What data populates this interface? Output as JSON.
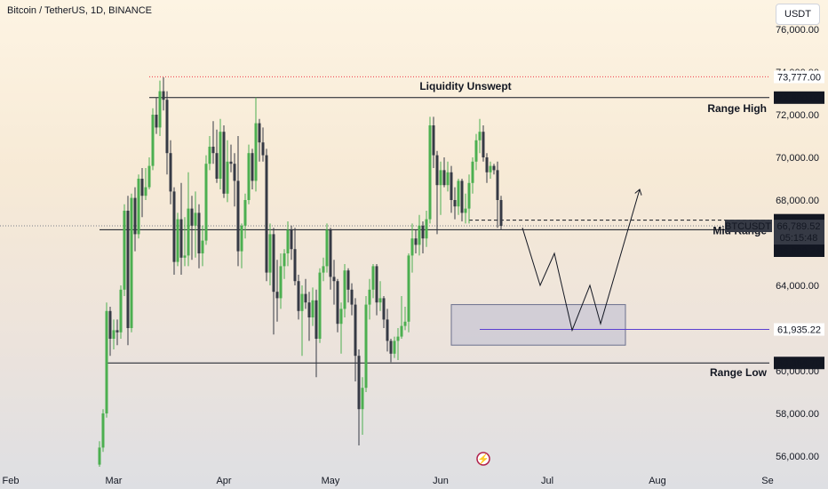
{
  "chart_data": {
    "type": "candlestick",
    "title": "Bitcoin / TetherUS, 1D, BINANCE",
    "currency": "USDT",
    "ylim": [
      55500,
      77000
    ],
    "y_ticks": [
      "56,000.00",
      "58,000.00",
      "60,000.00",
      "62,000.00",
      "64,000.00",
      "66,000.00",
      "68,000.00",
      "70,000.00",
      "72,000.00",
      "74,000.00",
      "76,000.00"
    ],
    "x_ticks": [
      {
        "label": "Feb",
        "day": 0
      },
      {
        "label": "Mar",
        "day": 29
      },
      {
        "label": "Apr",
        "day": 60
      },
      {
        "label": "May",
        "day": 90
      },
      {
        "label": "Jun",
        "day": 121
      },
      {
        "label": "Jul",
        "day": 151
      },
      {
        "label": "Aug",
        "day": 182
      },
      {
        "label": "Se",
        "day": 213
      }
    ],
    "colors": {
      "up": "#4caf50",
      "down": "#363a45",
      "accent": "#5b3fd1",
      "red": "#f23645"
    },
    "candles": [
      [
        55600,
        56700,
        55500,
        56400
      ],
      [
        56400,
        58200,
        56200,
        58000
      ],
      [
        58000,
        63200,
        57800,
        62800
      ],
      [
        62800,
        63000,
        60700,
        61500
      ],
      [
        61500,
        62400,
        61000,
        61900
      ],
      [
        61900,
        62400,
        61200,
        61800
      ],
      [
        61800,
        64000,
        61500,
        63800
      ],
      [
        63800,
        67800,
        63500,
        67500
      ],
      [
        67500,
        68200,
        61200,
        62000
      ],
      [
        62000,
        68300,
        61800,
        68100
      ],
      [
        68100,
        68600,
        65600,
        66400
      ],
      [
        66400,
        69200,
        66200,
        69000
      ],
      [
        69000,
        69500,
        67200,
        68200
      ],
      [
        68200,
        69500,
        68000,
        68600
      ],
      [
        68600,
        70000,
        68500,
        69600
      ],
      [
        69600,
        72300,
        69400,
        72000
      ],
      [
        72000,
        72800,
        71100,
        71400
      ],
      [
        71400,
        73600,
        71000,
        73100
      ],
      [
        73100,
        73750,
        72200,
        72700
      ],
      [
        72700,
        73100,
        69200,
        70200
      ],
      [
        70200,
        70800,
        67800,
        68400
      ],
      [
        68400,
        68600,
        64500,
        65100
      ],
      [
        65100,
        67400,
        64900,
        67100
      ],
      [
        67100,
        68800,
        64500,
        65300
      ],
      [
        65300,
        67200,
        64900,
        65400
      ],
      [
        65400,
        69300,
        64900,
        67600
      ],
      [
        67600,
        68200,
        65200,
        66800
      ],
      [
        66800,
        68400,
        65300,
        67400
      ],
      [
        67400,
        67800,
        64800,
        65500
      ],
      [
        65500,
        66800,
        64900,
        66100
      ],
      [
        66100,
        70100,
        65900,
        69700
      ],
      [
        69700,
        71000,
        69400,
        70500
      ],
      [
        70500,
        71700,
        69700,
        70200
      ],
      [
        70200,
        71300,
        68800,
        69000
      ],
      [
        69000,
        71800,
        68500,
        71200
      ],
      [
        71200,
        71500,
        68100,
        68300
      ],
      [
        68300,
        70800,
        67900,
        69800
      ],
      [
        69800,
        70600,
        69300,
        69700
      ],
      [
        69700,
        70200,
        67700,
        68900
      ],
      [
        68900,
        71000,
        64900,
        65600
      ],
      [
        65600,
        66900,
        64800,
        66800
      ],
      [
        66800,
        68300,
        66200,
        68000
      ],
      [
        68000,
        70600,
        67800,
        70200
      ],
      [
        70200,
        70400,
        68500,
        68900
      ],
      [
        68900,
        72800,
        68400,
        71600
      ],
      [
        71600,
        71800,
        69800,
        70700
      ],
      [
        70700,
        71400,
        69800,
        70100
      ],
      [
        70100,
        70400,
        64200,
        64600
      ],
      [
        64600,
        66900,
        64000,
        66400
      ],
      [
        66400,
        66700,
        61700,
        63700
      ],
      [
        63700,
        65200,
        62300,
        63400
      ],
      [
        63400,
        65500,
        62900,
        64900
      ],
      [
        64900,
        65700,
        64300,
        65500
      ],
      [
        65500,
        67000,
        64900,
        66600
      ],
      [
        66600,
        66800,
        65200,
        65700
      ],
      [
        65700,
        66700,
        64000,
        64200
      ],
      [
        64200,
        64500,
        62400,
        62800
      ],
      [
        62800,
        64000,
        60700,
        63600
      ],
      [
        63600,
        64300,
        62900,
        63200
      ],
      [
        63200,
        63700,
        61400,
        62500
      ],
      [
        62500,
        63900,
        62100,
        63300
      ],
      [
        63300,
        63800,
        59700,
        61500
      ],
      [
        61500,
        64800,
        61300,
        64600
      ],
      [
        64600,
        65300,
        64200,
        64900
      ],
      [
        64900,
        66900,
        64600,
        66600
      ],
      [
        66600,
        66700,
        63800,
        64400
      ],
      [
        64400,
        65200,
        63100,
        64200
      ],
      [
        64200,
        64300,
        61800,
        62200
      ],
      [
        62200,
        63200,
        60800,
        62900
      ],
      [
        62900,
        65000,
        62500,
        64700
      ],
      [
        64700,
        64800,
        63200,
        63800
      ],
      [
        63800,
        64100,
        62600,
        63100
      ],
      [
        63100,
        63400,
        59500,
        60700
      ],
      [
        60700,
        61000,
        56500,
        58200
      ],
      [
        58200,
        59700,
        57000,
        59200
      ],
      [
        59200,
        63500,
        59000,
        63100
      ],
      [
        63100,
        64300,
        62400,
        63800
      ],
      [
        63800,
        65000,
        63400,
        64900
      ],
      [
        64900,
        65000,
        62600,
        63200
      ],
      [
        63200,
        64200,
        62800,
        63400
      ],
      [
        63400,
        63500,
        62000,
        62400
      ],
      [
        62400,
        62900,
        60900,
        61400
      ],
      [
        61400,
        61500,
        60400,
        60800
      ],
      [
        60800,
        61600,
        60600,
        61400
      ],
      [
        61400,
        62000,
        60500,
        61600
      ],
      [
        61600,
        63500,
        61500,
        62100
      ],
      [
        62100,
        63000,
        61900,
        62300
      ],
      [
        62300,
        65500,
        61800,
        65400
      ],
      [
        65400,
        66900,
        64600,
        66200
      ],
      [
        66200,
        66600,
        65500,
        65900
      ],
      [
        65900,
        67300,
        65400,
        66800
      ],
      [
        66800,
        67000,
        65500,
        66200
      ],
      [
        66200,
        67500,
        65800,
        67100
      ],
      [
        67100,
        71900,
        66900,
        71500
      ],
      [
        71500,
        71900,
        69500,
        70100
      ],
      [
        70100,
        70300,
        66400,
        68700
      ],
      [
        68700,
        69800,
        67300,
        69400
      ],
      [
        69400,
        70000,
        68600,
        68700
      ],
      [
        68700,
        69800,
        68400,
        69300
      ],
      [
        69300,
        69600,
        67400,
        68000
      ],
      [
        68000,
        68600,
        67100,
        67700
      ],
      [
        67700,
        69000,
        67300,
        68900
      ],
      [
        68900,
        69000,
        67000,
        67400
      ],
      [
        67400,
        68300,
        66900,
        67600
      ],
      [
        67600,
        69200,
        66900,
        68800
      ],
      [
        68800,
        70000,
        68300,
        69800
      ],
      [
        69800,
        71100,
        69400,
        70800
      ],
      [
        70800,
        71800,
        70200,
        71200
      ],
      [
        71200,
        71500,
        69800,
        70000
      ],
      [
        70000,
        70200,
        68800,
        69300
      ],
      [
        69300,
        69800,
        69000,
        69600
      ],
      [
        69600,
        69700,
        69200,
        69400
      ],
      [
        69400,
        69800,
        66700,
        68000
      ],
      [
        68000,
        68200,
        66600,
        66789
      ]
    ],
    "annotations": {
      "range_high": {
        "price": 72800,
        "label": "Range High",
        "price_label": "72,800.00"
      },
      "liquidity": {
        "label": "Liquidity Unswept"
      },
      "recent_high": {
        "price": 73777,
        "price_label": "73,777.00"
      },
      "mid_range": {
        "price": 66609.24,
        "label": "Mid Range",
        "price_label": "66,609.24"
      },
      "dashed_level": {
        "price": 67054.86,
        "price_label": "67,054.86"
      },
      "current": {
        "symbol": "BTCUSDT",
        "price": 66789.52,
        "price_label": "66,789.52",
        "countdown": "05:15:48"
      },
      "range_low": {
        "price": 60364.7,
        "label": "Range Low",
        "price_label": "60,364.70"
      },
      "target": {
        "price": 61935.22,
        "price_label": "61,935.22"
      },
      "zone": {
        "day_from": 124,
        "day_to": 173,
        "price_top": 63100,
        "price_bottom": 61200
      },
      "projection": [
        [
          144,
          66700
        ],
        [
          149,
          64000
        ],
        [
          153,
          65500
        ],
        [
          158,
          61900
        ],
        [
          163,
          64000
        ],
        [
          166,
          62200
        ],
        [
          177,
          68500
        ]
      ]
    }
  }
}
